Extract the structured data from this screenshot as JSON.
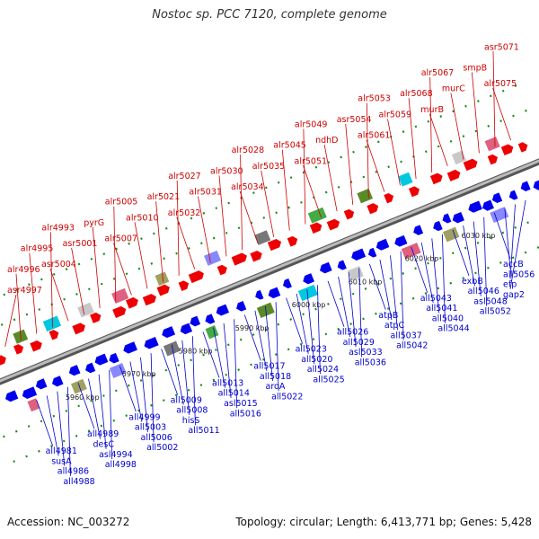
{
  "title": "Nostoc sp. PCC 7120, complete genome",
  "footer": {
    "accession": "Accession: NC_003272",
    "summary": "Topology: circular; Length: 6,413,771 bp; Genes: 5,428"
  },
  "colors": {
    "top_label": "#cc0000",
    "bottom_label": "#0000cc",
    "forward_gene": "#ee0000",
    "reverse_gene": "#0000ee",
    "backbone": "#888888",
    "tick": "#1a8a1a"
  },
  "axis_ticks": [
    "5960 kbp",
    "5970 kbp",
    "5980 kbp",
    "5990 kbp",
    "6000 kbp",
    "6010 kbp",
    "6020 kbp",
    "6030 kbp"
  ],
  "top_labels": [
    "asr4997",
    "alr4996",
    "alr4995",
    "alr4993",
    "asr5004",
    "asr5001",
    "pyrG",
    "alr5005",
    "alr5007",
    "alr5010",
    "alr5021",
    "alr5027",
    "alr5032",
    "alr5031",
    "alr5030",
    "alr5028",
    "alr5034",
    "alr5035",
    "alr5045",
    "alr5049",
    "alr5051",
    "ndhD",
    "asr5054",
    "alr5053",
    "alr5061",
    "alr5059",
    "alr5068",
    "alr5067",
    "murB",
    "murC",
    "smpB",
    "asr5071",
    "alr5075"
  ],
  "bottom_labels": [
    "all4981",
    "susA",
    "all4986",
    "all4988",
    "all4989",
    "desC",
    "asl4994",
    "all4998",
    "all4999",
    "all5003",
    "all5006",
    "all5002",
    "all5009",
    "all5008",
    "hisS",
    "all5011",
    "all5013",
    "all5014",
    "asl5015",
    "all5016",
    "all5017",
    "all5018",
    "aroA",
    "all5022",
    "all5023",
    "all5020",
    "all5024",
    "all5025",
    "all5026",
    "all5029",
    "asl5033",
    "all5036",
    "atpB",
    "atpC",
    "all5037",
    "all5042",
    "all5043",
    "all5041",
    "all5040",
    "all5044",
    "exbB",
    "all5046",
    "asl5048",
    "all5052",
    "accB",
    "all5056",
    "efp",
    "gap2"
  ]
}
